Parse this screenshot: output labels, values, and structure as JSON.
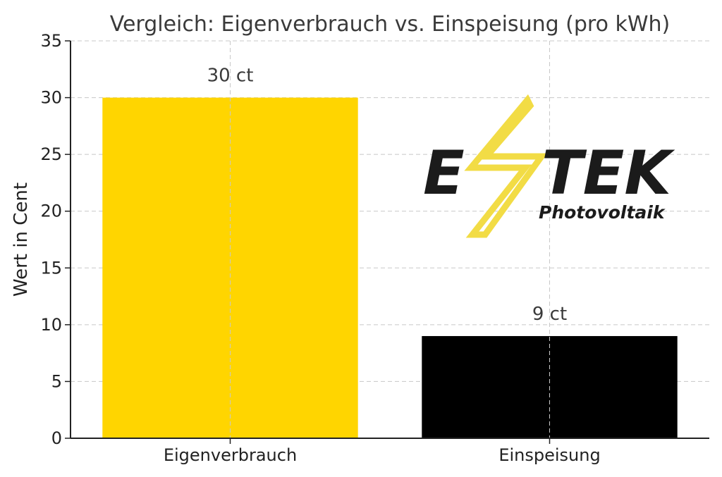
{
  "chart_data": {
    "type": "bar",
    "title": "Vergleich: Eigenverbrauch vs. Einspeisung (pro kWh)",
    "xlabel": "",
    "ylabel": "Wert in Cent",
    "categories": [
      "Eigenverbrauch",
      "Einspeisung"
    ],
    "values": [
      30,
      9
    ],
    "data_labels": [
      "30 ct",
      "9 ct"
    ],
    "colors": [
      "#FFD500",
      "#000000"
    ],
    "ylim": [
      0,
      35
    ],
    "yticks": [
      0,
      5,
      10,
      15,
      20,
      25,
      30,
      35
    ],
    "grid": true
  },
  "logo": {
    "name": "ESTEK Photovoltaik",
    "text_left": "E",
    "text_right": "TEK",
    "subtitle": "Photovoltaik",
    "bolt_color": "#F2DC45",
    "text_color": "#1b1b1b"
  }
}
